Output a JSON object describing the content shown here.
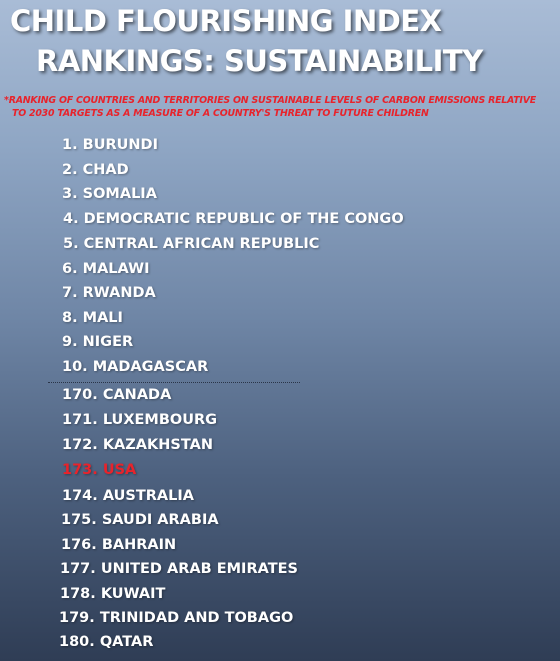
{
  "title_line1": "CHILD FLOURISHING INDEX",
  "title_line2": "RANKINGS: SUSTAINABILITY",
  "subtitle_line1": "*RANKING OF COUNTRIES AND TERRITORIES ON SUSTAINABLE LEVELS OF CARBON EMISSIONS RELATIVE",
  "subtitle_line2": "TO 2030 TARGETS AS A MEASURE OF A COUNTRY'S THREAT TO FUTURE CHILDREN",
  "colors": {
    "highlight": "#e8232b",
    "text": "#ffffff"
  },
  "top_rankings": [
    "1. BURUNDI",
    "2. CHAD",
    "3. SOMALIA",
    "4. DEMOCRATIC REPUBLIC OF THE CONGO",
    "5. CENTRAL AFRICAN REPUBLIC",
    "6. MALAWI",
    "7. RWANDA",
    "8. MALI",
    "9. NIGER",
    "10. MADAGASCAR"
  ],
  "bottom_rankings": [
    "170. CANADA",
    "171. LUXEMBOURG",
    "172. KAZAKHSTAN",
    "173. USA",
    "174. AUSTRALIA",
    "175. SAUDI ARABIA",
    "176. BAHRAIN",
    "177. UNITED ARAB EMIRATES",
    "178. KUWAIT",
    "179. TRINIDAD AND TOBAGO",
    "180. QATAR"
  ],
  "highlighted_entry": "173. USA"
}
